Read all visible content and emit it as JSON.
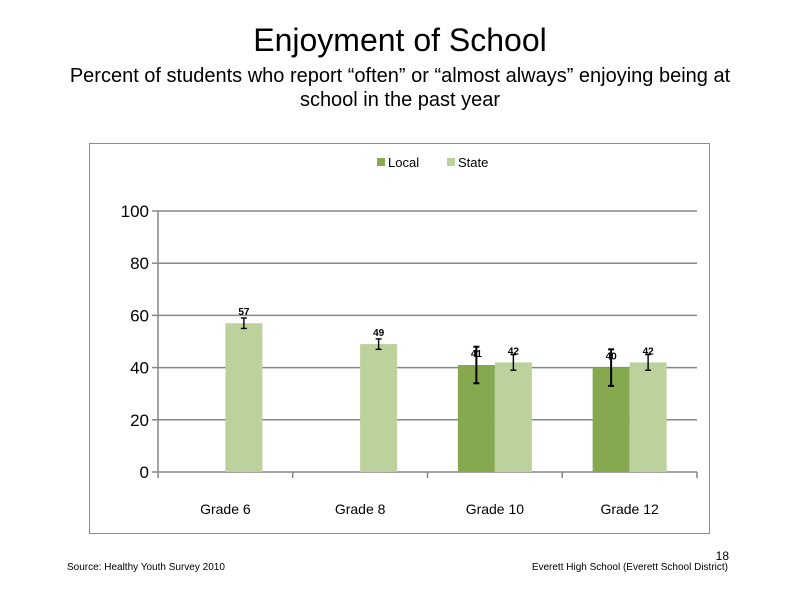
{
  "slide": {
    "title": "Enjoyment of School",
    "subtitle": "Percent of students who report “often” or “almost always” enjoying being at school in the past year",
    "source": "Source: Healthy Youth Survey 2010",
    "school": "Everett High School (Everett School District)",
    "page_number": "18"
  },
  "chart_data": {
    "type": "bar",
    "title": "",
    "xlabel": "",
    "ylabel": "",
    "categories": [
      "Grade 6",
      "Grade 8",
      "Grade 10",
      "Grade 12"
    ],
    "ylim": [
      0,
      100
    ],
    "yticks": [
      0,
      20,
      40,
      60,
      80,
      100
    ],
    "grid": true,
    "legend": "top-center",
    "series": [
      {
        "name": "Local",
        "color": "#86a84f",
        "values": [
          null,
          null,
          41,
          40
        ],
        "labels": [
          "",
          "",
          "41",
          "40"
        ],
        "error_low": [
          null,
          null,
          34,
          33
        ],
        "error_high": [
          null,
          null,
          48,
          47
        ]
      },
      {
        "name": "State",
        "color": "#bcd19b",
        "values": [
          57,
          49,
          42,
          42
        ],
        "labels": [
          "57",
          "49",
          "42",
          "42"
        ],
        "error_low": [
          55,
          47,
          39,
          39
        ],
        "error_high": [
          59,
          51,
          45,
          45
        ]
      }
    ]
  }
}
